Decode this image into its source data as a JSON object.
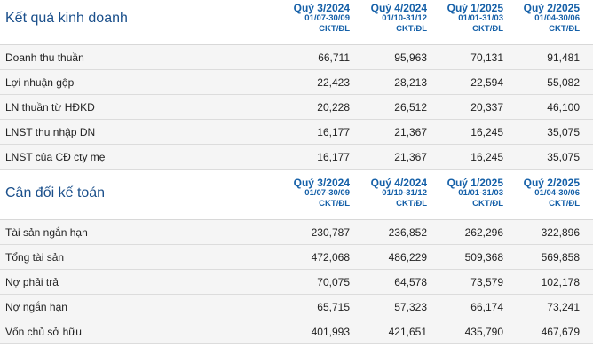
{
  "income": {
    "title": "Kết quả kinh doanh",
    "columns": [
      {
        "quarter": "Quý 3/2024",
        "range": "01/07-30/09",
        "unit": "CKT/ĐL"
      },
      {
        "quarter": "Quý 4/2024",
        "range": "01/10-31/12",
        "unit": "CKT/ĐL"
      },
      {
        "quarter": "Quý 1/2025",
        "range": "01/01-31/03",
        "unit": "CKT/ĐL"
      },
      {
        "quarter": "Quý 2/2025",
        "range": "01/04-30/06",
        "unit": "CKT/ĐL"
      }
    ],
    "rows": [
      {
        "label": "Doanh thu thuần",
        "values": [
          "66,711",
          "95,963",
          "70,131",
          "91,481"
        ]
      },
      {
        "label": "Lợi nhuận gộp",
        "values": [
          "22,423",
          "28,213",
          "22,594",
          "55,082"
        ]
      },
      {
        "label": "LN thuần từ HĐKD",
        "values": [
          "20,228",
          "26,512",
          "20,337",
          "46,100"
        ]
      },
      {
        "label": "LNST thu nhập DN",
        "values": [
          "16,177",
          "21,367",
          "16,245",
          "35,075"
        ]
      },
      {
        "label": "LNST của CĐ cty mẹ",
        "values": [
          "16,177",
          "21,367",
          "16,245",
          "35,075"
        ]
      }
    ]
  },
  "balance": {
    "title": "Cân đối kế toán",
    "columns": [
      {
        "quarter": "Quý 3/2024",
        "range": "01/07-30/09",
        "unit": "CKT/ĐL"
      },
      {
        "quarter": "Quý 4/2024",
        "range": "01/10-31/12",
        "unit": "CKT/ĐL"
      },
      {
        "quarter": "Quý 1/2025",
        "range": "01/01-31/03",
        "unit": "CKT/ĐL"
      },
      {
        "quarter": "Quý 2/2025",
        "range": "01/04-30/06",
        "unit": "CKT/ĐL"
      }
    ],
    "rows": [
      {
        "label": "Tài sản ngắn hạn",
        "values": [
          "230,787",
          "236,852",
          "262,296",
          "322,896"
        ]
      },
      {
        "label": "Tổng tài sản",
        "values": [
          "472,068",
          "486,229",
          "509,368",
          "569,858"
        ]
      },
      {
        "label": "Nợ phải trả",
        "values": [
          "70,075",
          "64,578",
          "73,579",
          "102,178"
        ]
      },
      {
        "label": "Nợ ngắn hạn",
        "values": [
          "65,715",
          "57,323",
          "66,174",
          "73,241"
        ]
      },
      {
        "label": "Vốn chủ sở hữu",
        "values": [
          "401,993",
          "421,651",
          "435,790",
          "467,679"
        ]
      }
    ]
  }
}
